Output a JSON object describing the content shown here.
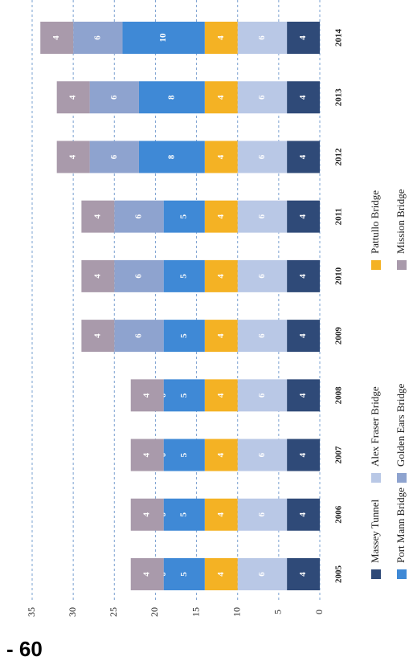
{
  "page_label": "- 60",
  "chart_data": {
    "type": "stacked_bar",
    "categories": [
      "2005",
      "2006",
      "2007",
      "2008",
      "2009",
      "2010",
      "2011",
      "2012",
      "2013",
      "2014"
    ],
    "series": [
      {
        "name": "Massey Tunnel",
        "color": "#2f4a78",
        "values": [
          4,
          4,
          4,
          4,
          4,
          4,
          4,
          4,
          4,
          4
        ]
      },
      {
        "name": "Alex Fraser Bridge",
        "color": "#b9c8e6",
        "values": [
          6,
          6,
          6,
          6,
          6,
          6,
          6,
          6,
          6,
          6
        ]
      },
      {
        "name": "Pattullo Bridge",
        "color": "#f4b224",
        "values": [
          4,
          4,
          4,
          4,
          4,
          4,
          4,
          4,
          4,
          4
        ]
      },
      {
        "name": "Port Mann Bridge",
        "color": "#3f89d6",
        "values": [
          5,
          5,
          5,
          5,
          5,
          5,
          5,
          8,
          8,
          10
        ]
      },
      {
        "name": "Golden Ears Bridge",
        "color": "#8ea3cf",
        "values": [
          0,
          0,
          0,
          0,
          6,
          6,
          6,
          6,
          6,
          6
        ]
      },
      {
        "name": "Mission Bridge",
        "color": "#a99aab",
        "values": [
          4,
          4,
          4,
          4,
          4,
          4,
          4,
          4,
          4,
          4
        ]
      }
    ],
    "ylim": [
      0,
      35
    ],
    "yticks": [
      0,
      5,
      10,
      15,
      20,
      25,
      30,
      35
    ],
    "grid": true
  }
}
